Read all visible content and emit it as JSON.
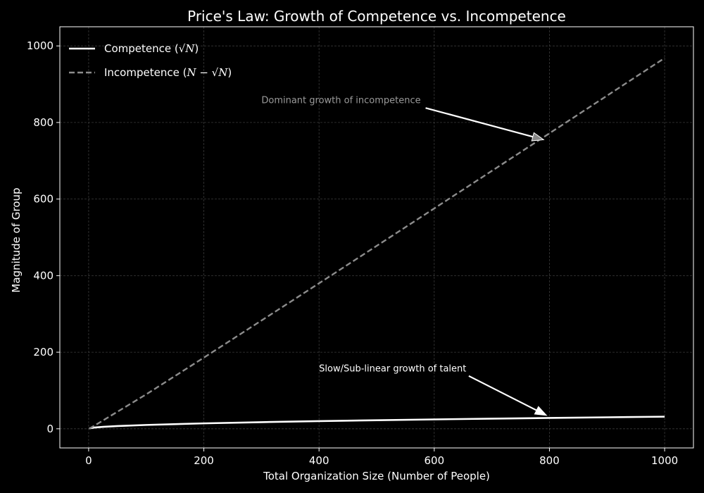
{
  "chart_data": {
    "type": "line",
    "title": "Price's Law: Growth of Competence vs. Incompetence",
    "xlabel": "Total Organization Size (Number of People)",
    "ylabel": "Magnitude of Group",
    "xlim": [
      -50,
      1050
    ],
    "ylim": [
      -50,
      1050
    ],
    "xticks": [
      0,
      200,
      400,
      600,
      800,
      1000
    ],
    "yticks": [
      0,
      200,
      400,
      600,
      800,
      1000
    ],
    "grid": true,
    "legend_position": "top-left",
    "series": [
      {
        "name": "Competence (√N)",
        "legend_prefix": "Competence (",
        "legend_math": "√N",
        "legend_suffix": ")",
        "style": "solid",
        "color": "#ffffff",
        "x": [
          1,
          10,
          25,
          50,
          100,
          200,
          300,
          400,
          500,
          600,
          700,
          800,
          900,
          1000
        ],
        "y": [
          1,
          3.16,
          5,
          7.07,
          10,
          14.14,
          17.32,
          20,
          22.36,
          24.49,
          26.46,
          28.28,
          30,
          31.62
        ]
      },
      {
        "name": "Incompetence (N − √N)",
        "legend_prefix": "Incompetence (",
        "legend_math": "N − √N",
        "legend_suffix": ")",
        "style": "dashed",
        "color": "#8c8c8c",
        "x": [
          1,
          100,
          200,
          300,
          400,
          500,
          600,
          700,
          800,
          900,
          1000
        ],
        "y": [
          0,
          90,
          185.86,
          282.68,
          380,
          477.64,
          575.51,
          673.54,
          771.72,
          870,
          968.38
        ]
      }
    ],
    "annotations": [
      {
        "text": "Dominant growth of incompetence",
        "color": "#9a9a9a",
        "text_x": 300,
        "text_y": 850,
        "arrow_from": [
          585,
          838
        ],
        "arrow_to": [
          790,
          755
        ]
      },
      {
        "text": "Slow/Sub-linear growth of talent",
        "color": "#ffffff",
        "text_x": 400,
        "text_y": 150,
        "arrow_from": [
          660,
          138
        ],
        "arrow_to": [
          795,
          35
        ]
      }
    ]
  }
}
